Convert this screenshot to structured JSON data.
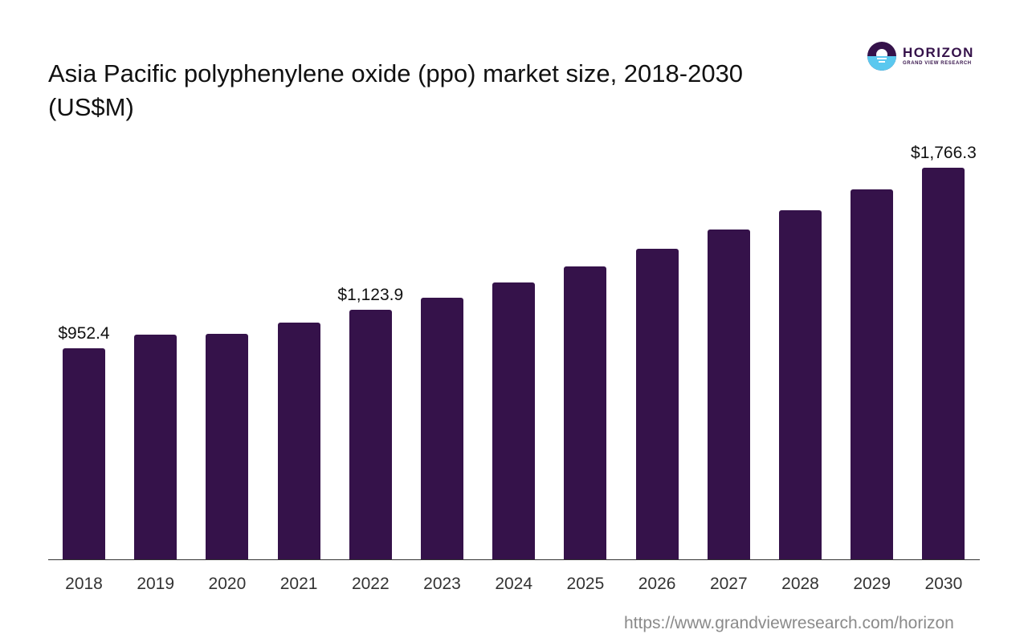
{
  "title": "Asia Pacific polyphenylene oxide (ppo) market size, 2018-2030 (US$M)",
  "logo": {
    "name": "HORIZON",
    "subtitle": "GRAND VIEW RESEARCH",
    "colors": {
      "primary": "#35124a",
      "accent": "#5ac8ef"
    }
  },
  "source_url": "https://www.grandviewresearch.com/horizon",
  "bar_color": "#35124a",
  "chart_data": {
    "type": "bar",
    "title": "Asia Pacific polyphenylene oxide (ppo) market size, 2018-2030 (US$M)",
    "xlabel": "",
    "ylabel": "US$M",
    "categories": [
      "2018",
      "2019",
      "2020",
      "2021",
      "2022",
      "2023",
      "2024",
      "2025",
      "2026",
      "2027",
      "2028",
      "2029",
      "2030"
    ],
    "values": [
      952.4,
      1013,
      1017,
      1068,
      1123.9,
      1180,
      1249,
      1321,
      1401,
      1488,
      1574,
      1668,
      1766.3
    ],
    "data_labels": [
      {
        "category": "2018",
        "text": "$952.4"
      },
      {
        "category": "2022",
        "text": "$1,123.9"
      },
      {
        "category": "2030",
        "text": "$1,766.3"
      }
    ],
    "ylim": [
      0,
      1766.3
    ],
    "grid": false,
    "legend": "none"
  }
}
